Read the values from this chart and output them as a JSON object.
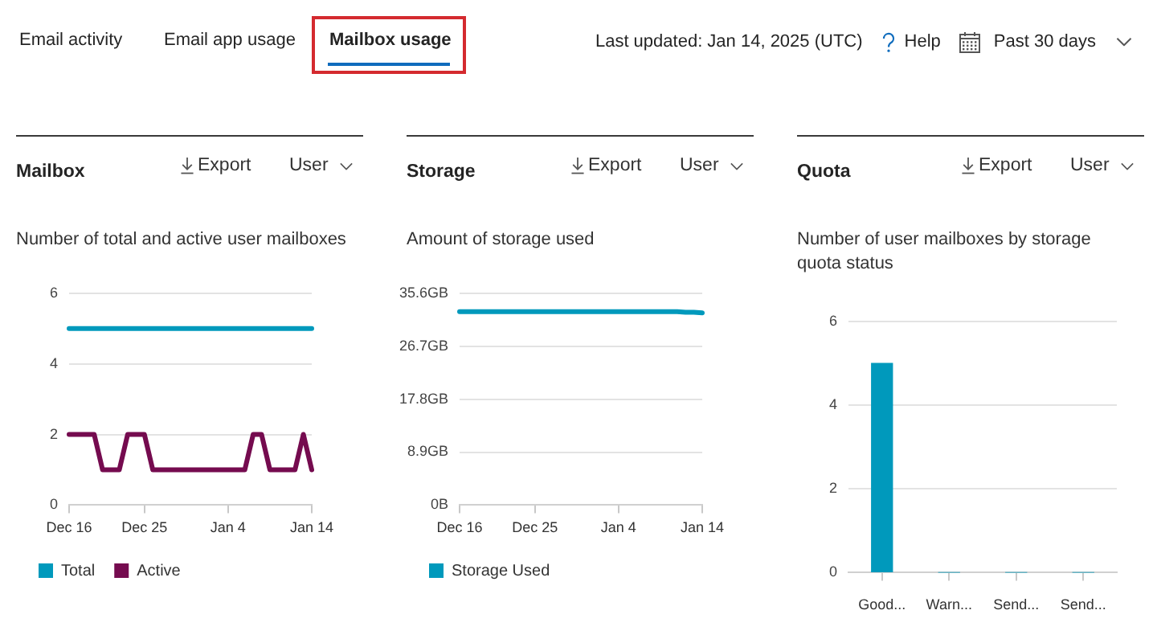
{
  "chart_data": [
    {
      "type": "other",
      "annotations": [
        "Email activity",
        "Email app usage",
        "Mailbox usage",
        "Last updated: Jan 14, 2025 (UTC)",
        "Help",
        "Past 30 days"
      ]
    },
    {
      "type": "line",
      "title": "Mailbox",
      "subtitle": "Number of total and active user mailboxes",
      "annotations": [
        "Export",
        "User"
      ],
      "categories": [
        "Dec 16",
        null,
        null,
        null,
        null,
        null,
        null,
        null,
        null,
        "Dec 25",
        null,
        null,
        null,
        null,
        null,
        null,
        null,
        null,
        null,
        "Jan 4",
        null,
        null,
        null,
        null,
        null,
        null,
        null,
        null,
        null,
        "Jan 14"
      ],
      "series": [
        {
          "name": "Total",
          "color": "#0099bc",
          "values": [
            5,
            5,
            5,
            5,
            5,
            5,
            5,
            5,
            5,
            5,
            5,
            5,
            5,
            5,
            5,
            5,
            5,
            5,
            5,
            5,
            5,
            5,
            5,
            5,
            5,
            5,
            5,
            5,
            5,
            5
          ]
        },
        {
          "name": "Active",
          "color": "#750b4f",
          "values": [
            2,
            2,
            2,
            2,
            1,
            1,
            1,
            2,
            2,
            2,
            1,
            1,
            1,
            1,
            1,
            1,
            1,
            1,
            1,
            1,
            1,
            1,
            2,
            2,
            1,
            1,
            1,
            1,
            2,
            1
          ]
        }
      ],
      "ylim": [
        0,
        6
      ],
      "yticks": [
        0,
        2,
        4,
        6
      ],
      "grid": "y",
      "legend": "bottom left"
    },
    {
      "type": "line",
      "title": "Storage",
      "subtitle": "Amount of storage used",
      "annotations": [
        "Export",
        "User"
      ],
      "categories": [
        "Dec 16",
        null,
        null,
        null,
        null,
        null,
        null,
        null,
        null,
        "Dec 25",
        null,
        null,
        null,
        null,
        null,
        null,
        null,
        null,
        null,
        "Jan 4",
        null,
        null,
        null,
        null,
        null,
        null,
        null,
        null,
        null,
        "Jan 14"
      ],
      "series": [
        {
          "name": "Storage Used",
          "color": "#0099bc",
          "values": [
            32.5,
            32.5,
            32.5,
            32.5,
            32.5,
            32.5,
            32.5,
            32.5,
            32.5,
            32.5,
            32.5,
            32.5,
            32.5,
            32.5,
            32.5,
            32.5,
            32.5,
            32.5,
            32.5,
            32.5,
            32.5,
            32.5,
            32.5,
            32.5,
            32.5,
            32.5,
            32.5,
            32.4,
            32.4,
            32.3
          ]
        }
      ],
      "ylim": [
        0,
        35.6
      ],
      "yticks": [
        {
          "value": 0,
          "label": "0B"
        },
        {
          "value": 8.9,
          "label": "8.9GB"
        },
        {
          "value": 17.8,
          "label": "17.8GB"
        },
        {
          "value": 26.7,
          "label": "26.7GB"
        },
        {
          "value": 35.6,
          "label": "35.6GB"
        }
      ],
      "grid": "y",
      "legend": "bottom left"
    },
    {
      "type": "bar",
      "title": "Quota",
      "subtitle": "Number of user mailboxes by storage quota status",
      "annotations": [
        "Export",
        "User"
      ],
      "categories": [
        "Good...",
        "Warn...",
        "Send...",
        "Send..."
      ],
      "values": [
        5,
        0,
        0,
        0
      ],
      "color": "#0099bc",
      "ylim": [
        0,
        6
      ],
      "yticks": [
        0,
        2,
        4,
        6
      ],
      "grid": "y"
    }
  ]
}
